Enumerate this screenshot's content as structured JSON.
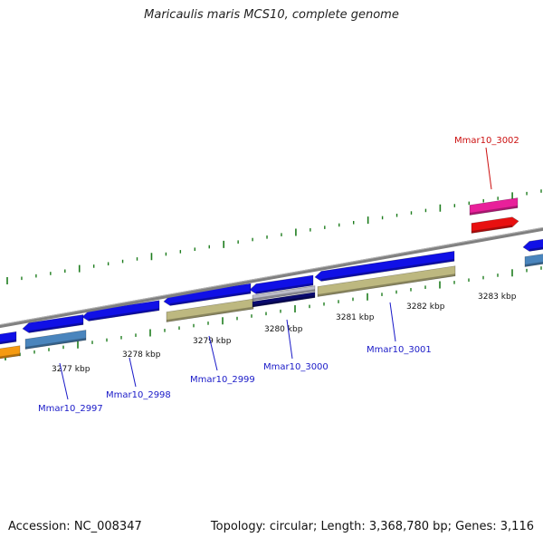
{
  "title": "Maricaulis maris MCS10, complete genome",
  "footer": {
    "accession": "Accession: NC_008347",
    "summary": "Topology: circular; Length: 3,368,780 bp; Genes: 3,116"
  },
  "colors": {
    "backbone": "#808080",
    "tick_mark": "#1e7d1e",
    "cds_forward": "#1010e6",
    "cds_reverse": "#3a3ad8",
    "gene_khaki": "#bdb880",
    "gene_steelblue": "#4a85bd",
    "gene_orange": "#f59a10",
    "gene_navy": "#0a0a70",
    "gene_silver": "#bcbcc8",
    "gene_pink": "#e8209a",
    "gene_red": "#e81010",
    "label_blue": "#1a1ac8",
    "label_red": "#cc1010"
  },
  "scale_labels": [
    "3277 kbp",
    "3278 kbp",
    "3279 kbp",
    "3280 kbp",
    "3281 kbp",
    "3282 kbp",
    "3283 kbp"
  ],
  "gene_labels": [
    {
      "text": "Mmar10_2997",
      "color": "label_blue"
    },
    {
      "text": "Mmar10_2998",
      "color": "label_blue"
    },
    {
      "text": "Mmar10_2999",
      "color": "label_blue"
    },
    {
      "text": "Mmar10_3000",
      "color": "label_blue"
    },
    {
      "text": "Mmar10_3001",
      "color": "label_blue"
    },
    {
      "text": "Mmar10_3002",
      "color": "label_red"
    }
  ]
}
